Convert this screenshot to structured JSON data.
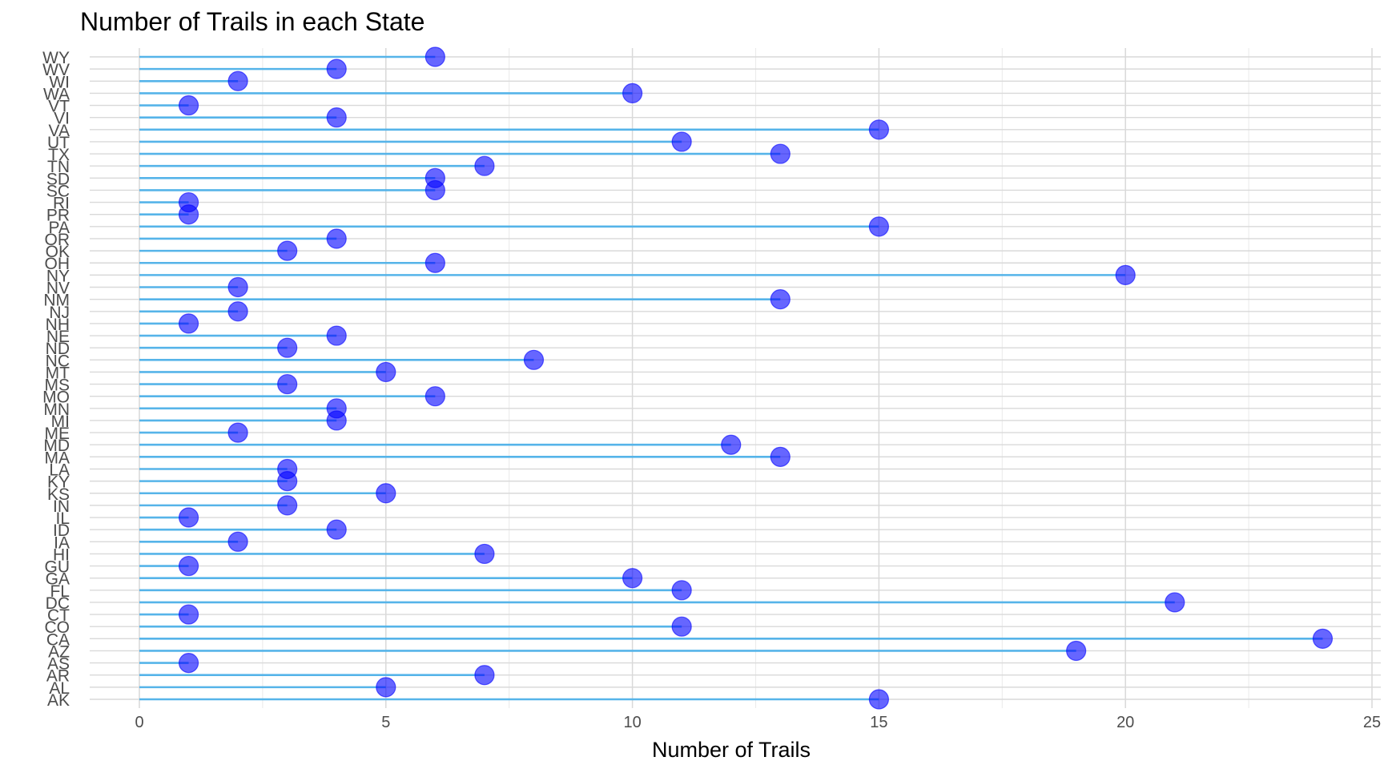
{
  "chart_data": {
    "type": "lollipop",
    "title": "Number of Trails in each State",
    "xlabel": "Number of Trails",
    "ylabel": "",
    "xlim": [
      0,
      25
    ],
    "xticks": [
      0,
      5,
      10,
      15,
      20,
      25
    ],
    "grid": true,
    "legend": "none",
    "colors": {
      "stem": "#56B4E9",
      "dot_fill": "#0000ff",
      "grid_major": "#d9d9d9",
      "grid_minor": "#ebebeb"
    },
    "categories": [
      "AK",
      "AL",
      "AR",
      "AS",
      "AZ",
      "CA",
      "CO",
      "CT",
      "DC",
      "FL",
      "GA",
      "GU",
      "HI",
      "IA",
      "ID",
      "IL",
      "IN",
      "KS",
      "KY",
      "LA",
      "MA",
      "MD",
      "ME",
      "MI",
      "MN",
      "MO",
      "MS",
      "MT",
      "NC",
      "ND",
      "NE",
      "NH",
      "NJ",
      "NM",
      "NV",
      "NY",
      "OH",
      "OK",
      "OR",
      "PA",
      "PR",
      "RI",
      "SC",
      "SD",
      "TN",
      "TX",
      "UT",
      "VA",
      "VI",
      "VT",
      "WA",
      "WI",
      "WV",
      "WY"
    ],
    "values": [
      15,
      5,
      7,
      1,
      19,
      24,
      11,
      1,
      21,
      11,
      10,
      1,
      7,
      2,
      4,
      1,
      3,
      5,
      3,
      3,
      13,
      12,
      2,
      4,
      4,
      6,
      3,
      5,
      8,
      3,
      4,
      1,
      2,
      13,
      2,
      20,
      6,
      3,
      4,
      15,
      1,
      1,
      6,
      6,
      7,
      13,
      11,
      15,
      4,
      1,
      10,
      2,
      4,
      6
    ]
  }
}
